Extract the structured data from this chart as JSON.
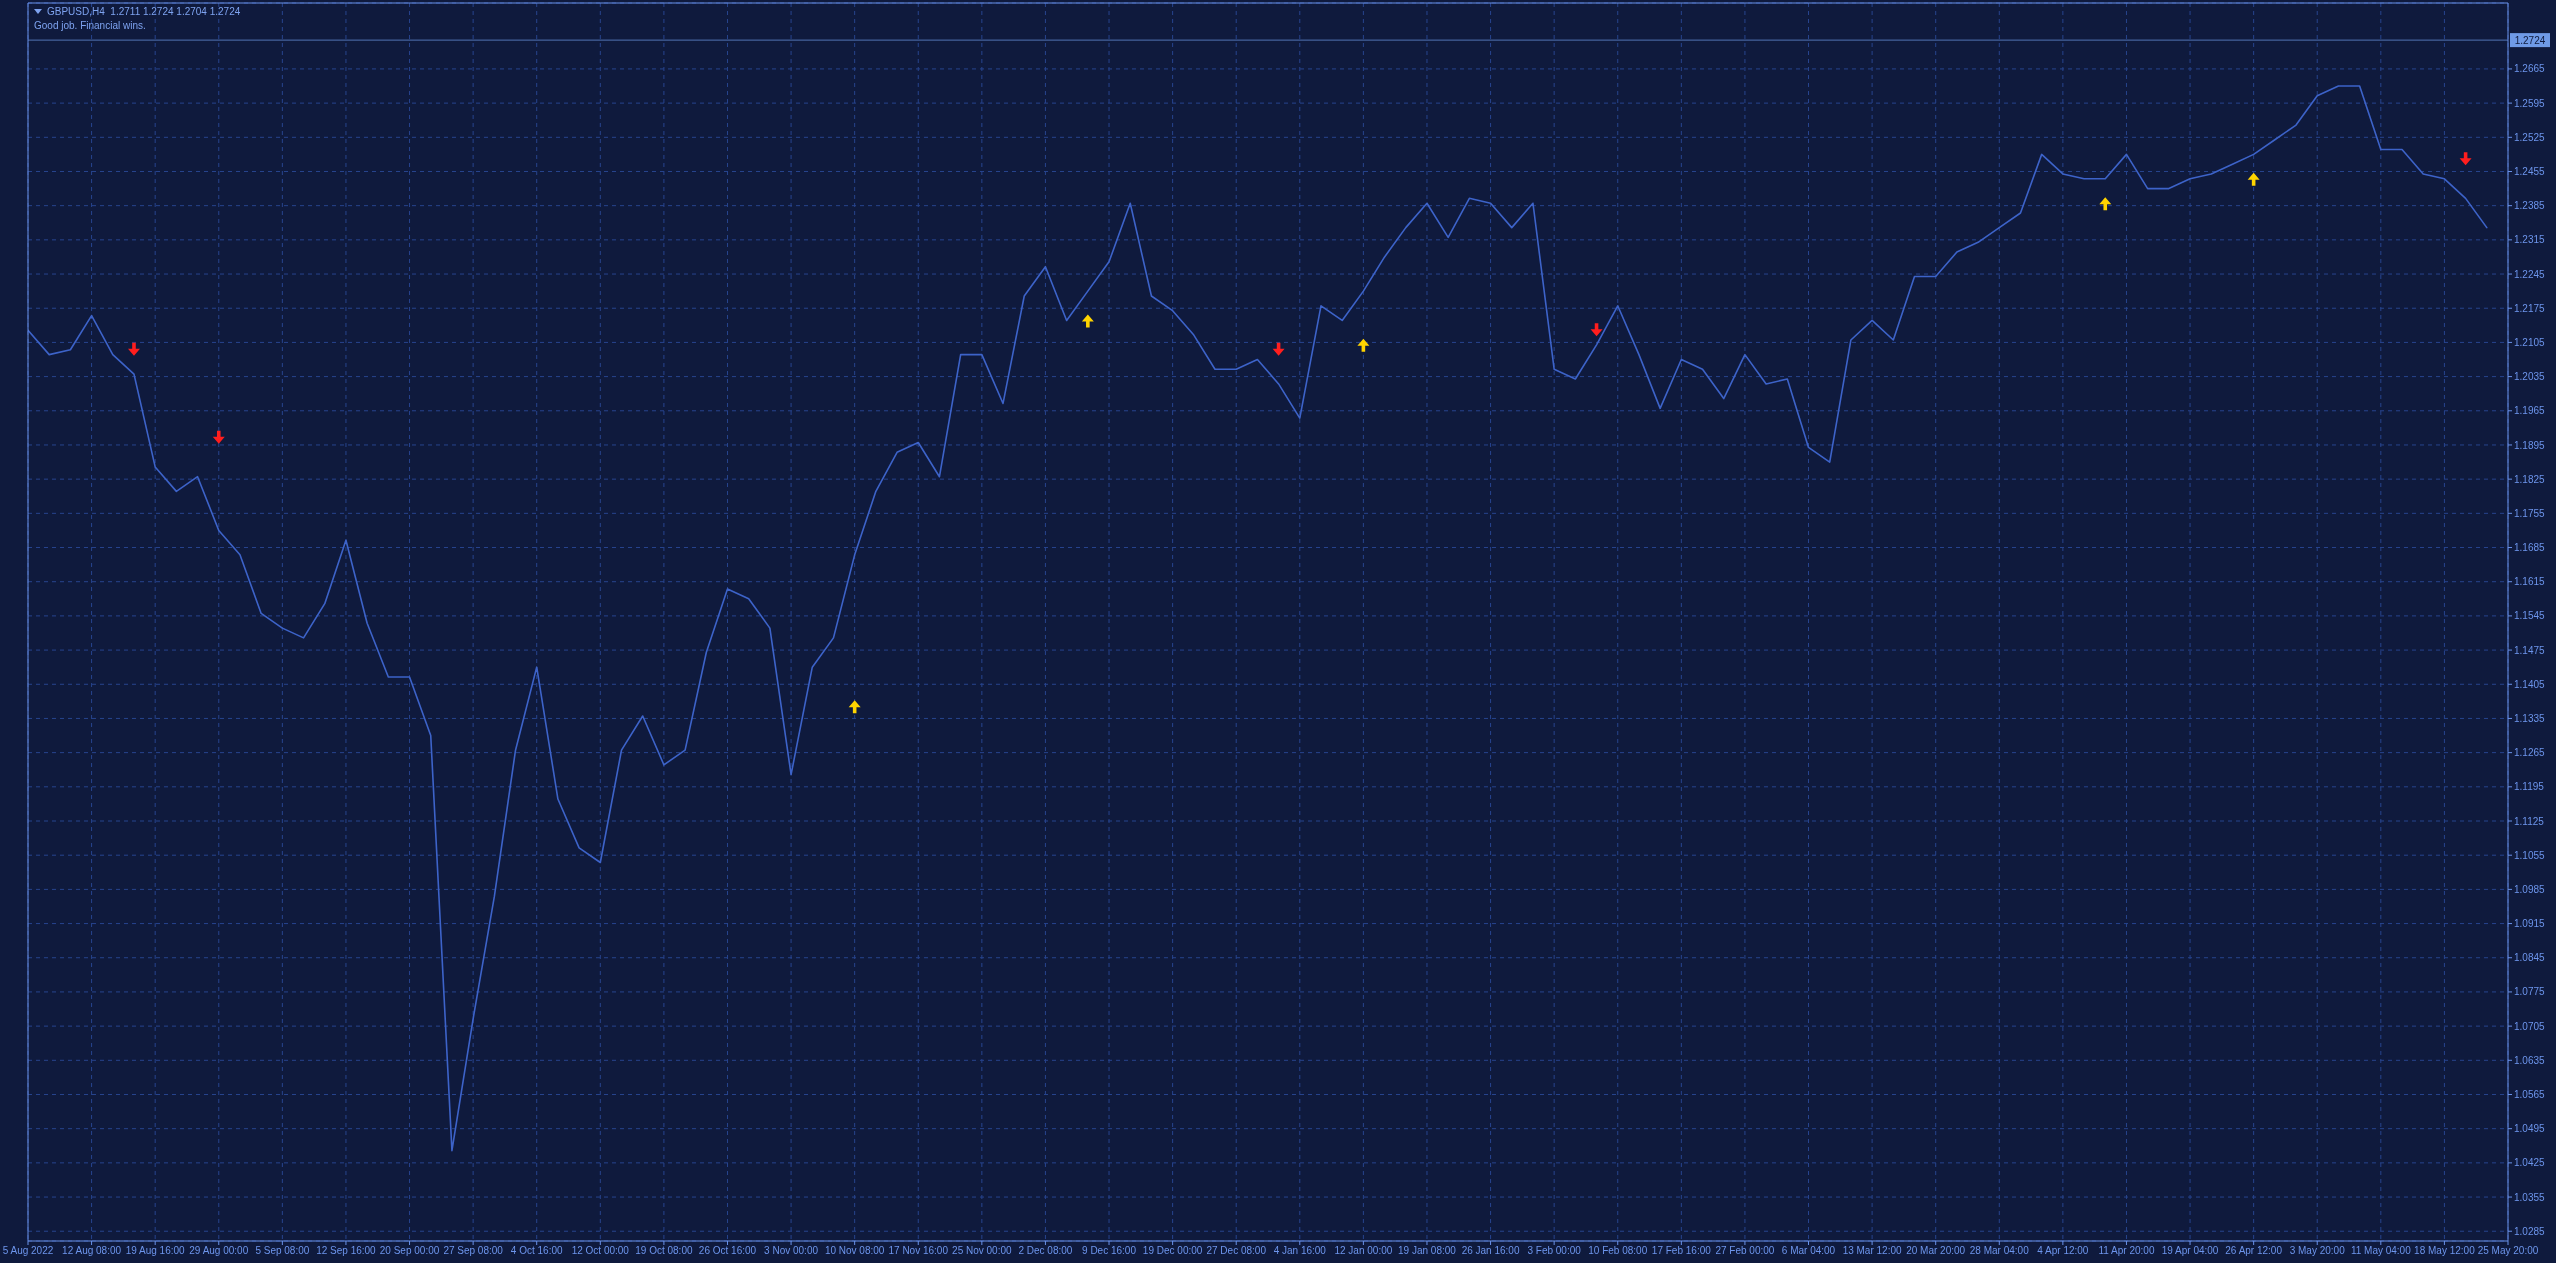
{
  "chart_data": {
    "type": "line",
    "title": "GBPUSD,H4  1.2711 1.2724 1.2704 1.2724",
    "subtitle": "Good job. Financial wins.",
    "categories": [
      "5 Aug 2022",
      null,
      null,
      "12 Aug 08:00",
      null,
      null,
      "19 Aug 16:00",
      null,
      null,
      "29 Aug 00:00",
      null,
      null,
      "5 Sep 08:00",
      null,
      null,
      "12 Sep 16:00",
      null,
      null,
      "20 Sep 00:00",
      null,
      null,
      "27 Sep 08:00",
      null,
      null,
      "4 Oct 16:00",
      null,
      null,
      "12 Oct 00:00",
      null,
      null,
      "19 Oct 08:00",
      null,
      null,
      "26 Oct 16:00",
      null,
      null,
      "3 Nov 00:00",
      null,
      null,
      "10 Nov 08:00",
      null,
      null,
      "17 Nov 16:00",
      null,
      null,
      "25 Nov 00:00",
      null,
      null,
      "2 Dec 08:00",
      null,
      null,
      "9 Dec 16:00",
      null,
      null,
      "19 Dec 00:00",
      null,
      null,
      "27 Dec 08:00",
      null,
      null,
      "4 Jan 16:00",
      null,
      null,
      "12 Jan 00:00",
      null,
      null,
      "19 Jan 08:00",
      null,
      null,
      "26 Jan 16:00",
      null,
      null,
      "3 Feb 00:00",
      null,
      null,
      "10 Feb 08:00",
      null,
      null,
      "17 Feb 16:00",
      null,
      null,
      "27 Feb 00:00",
      null,
      null,
      "6 Mar 04:00",
      null,
      null,
      "13 Mar 12:00",
      null,
      null,
      "20 Mar 20:00",
      null,
      null,
      "28 Mar 04:00",
      null,
      null,
      "4 Apr 12:00",
      null,
      null,
      "11 Apr 20:00",
      null,
      null,
      "19 Apr 04:00",
      null,
      null,
      "26 Apr 12:00",
      null,
      null,
      "3 May 20:00",
      null,
      null,
      "11 May 04:00",
      null,
      null,
      "18 May 12:00",
      null,
      null,
      "25 May 20:00"
    ],
    "series": [
      {
        "color": "#3d63c9",
        "values": [
          1.213,
          1.208,
          1.209,
          1.216,
          1.208,
          1.204,
          1.185,
          1.18,
          1.183,
          1.172,
          1.167,
          1.155,
          1.152,
          1.15,
          1.157,
          1.17,
          1.153,
          1.142,
          1.142,
          1.13,
          1.045,
          1.072,
          1.097,
          1.127,
          1.144,
          1.117,
          1.107,
          1.104,
          1.127,
          1.134,
          1.124,
          1.127,
          1.147,
          1.16,
          1.158,
          1.152,
          1.122,
          1.144,
          1.15,
          1.167,
          1.18,
          1.188,
          1.19,
          1.183,
          1.208,
          1.208,
          1.198,
          1.22,
          1.226,
          1.215,
          1.221,
          1.227,
          1.239,
          1.22,
          1.217,
          1.212,
          1.205,
          1.205,
          1.207,
          1.202,
          1.195,
          1.218,
          1.215,
          1.221,
          1.228,
          1.234,
          1.239,
          1.232,
          1.24,
          1.239,
          1.234,
          1.239,
          1.205,
          1.203,
          1.21,
          1.218,
          1.208,
          1.197,
          1.207,
          1.205,
          1.199,
          1.208,
          1.202,
          1.203,
          1.189,
          1.186,
          1.211,
          1.215,
          1.211,
          1.224,
          1.224,
          1.229,
          1.231,
          1.234,
          1.237,
          1.249,
          1.245,
          1.244,
          1.244,
          1.249,
          1.242,
          1.242,
          1.244,
          1.245,
          1.247,
          1.249,
          1.252,
          1.255,
          1.261,
          1.263,
          1.263,
          1.25,
          1.25,
          1.245,
          1.244,
          1.24,
          1.234,
          null
        ]
      },
      {
        "type": "scatter",
        "color": "#ff1e1e",
        "marker": "triangle",
        "values": [
          null,
          null,
          null,
          null,
          null,
          1.209,
          null,
          null,
          null,
          1.191,
          null,
          null,
          null,
          null,
          null,
          null,
          null,
          null,
          null,
          null,
          null,
          null,
          null,
          null,
          null,
          null,
          null,
          null,
          null,
          null,
          null,
          null,
          null,
          null,
          null,
          null,
          null,
          null,
          null,
          null,
          null,
          null,
          null,
          null,
          null,
          null,
          null,
          null,
          null,
          null,
          null,
          null,
          null,
          null,
          null,
          null,
          null,
          null,
          null,
          1.209,
          null,
          null,
          null,
          null,
          null,
          null,
          null,
          null,
          null,
          null,
          null,
          null,
          null,
          null,
          1.213,
          null,
          null,
          null,
          null,
          null,
          null,
          null,
          null,
          null,
          null,
          null,
          null,
          null,
          null,
          null,
          null,
          null,
          null,
          null,
          null,
          null,
          null,
          null,
          null,
          null,
          null,
          null,
          null,
          null,
          null,
          null,
          null,
          null,
          null,
          null,
          null,
          null,
          null,
          null,
          null,
          1.248,
          null,
          null
        ]
      },
      {
        "type": "scatter",
        "color": "#ffd400",
        "marker": "triangle",
        "values": [
          null,
          null,
          null,
          null,
          null,
          null,
          null,
          null,
          null,
          null,
          null,
          null,
          null,
          null,
          null,
          null,
          null,
          null,
          null,
          null,
          null,
          null,
          null,
          null,
          null,
          null,
          null,
          null,
          null,
          null,
          null,
          null,
          null,
          null,
          null,
          null,
          null,
          null,
          null,
          1.136,
          null,
          null,
          null,
          null,
          null,
          null,
          null,
          null,
          null,
          null,
          1.215,
          null,
          null,
          null,
          null,
          null,
          null,
          null,
          null,
          null,
          null,
          null,
          null,
          1.21,
          null,
          null,
          null,
          null,
          null,
          null,
          null,
          null,
          null,
          null,
          null,
          null,
          null,
          null,
          null,
          null,
          null,
          null,
          null,
          null,
          null,
          null,
          null,
          null,
          null,
          null,
          null,
          null,
          null,
          null,
          null,
          null,
          null,
          null,
          1.239,
          null,
          null,
          null,
          null,
          null,
          null,
          1.244,
          null,
          null,
          null,
          null,
          null,
          null,
          null,
          null,
          null,
          null,
          null,
          null
        ]
      }
    ],
    "ylim": [
      1.0265,
      1.28
    ],
    "yticks": [
      1.0285,
      1.0355,
      1.0425,
      1.0495,
      1.0565,
      1.0635,
      1.0705,
      1.0775,
      1.0845,
      1.0915,
      1.0985,
      1.1055,
      1.1125,
      1.1195,
      1.1265,
      1.1335,
      1.1405,
      1.1475,
      1.1545,
      1.1615,
      1.1685,
      1.1755,
      1.1825,
      1.1895,
      1.1965,
      1.2035,
      1.2105,
      1.2175,
      1.2245,
      1.2315,
      1.2385,
      1.2455,
      1.2525,
      1.2595,
      1.2665
    ],
    "ref_lines": [
      {
        "axis": "y",
        "value": 1.2724,
        "label": "1.2724",
        "color": "#6f9ae6"
      }
    ],
    "grid": true,
    "line_style": "solid"
  }
}
